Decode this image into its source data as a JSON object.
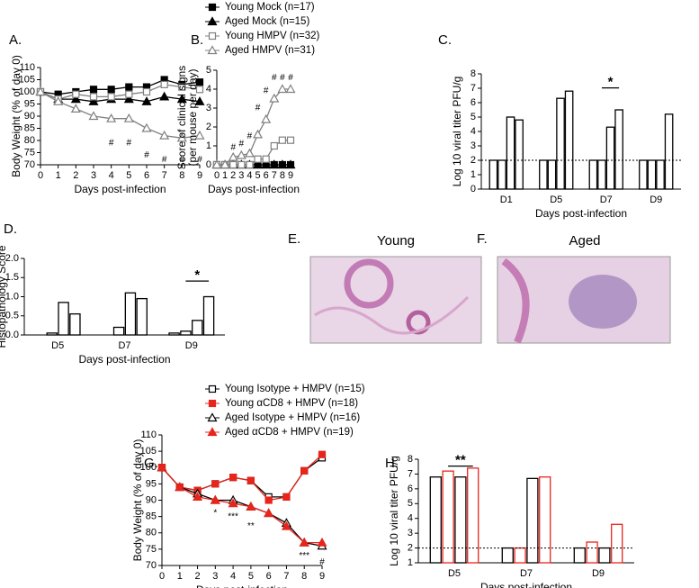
{
  "chart_data": [
    {
      "type": "line",
      "panel_label": "A.",
      "ylabel": [
        "Body Weight (% of day 0)"
      ],
      "xlabel": "Days post-infection",
      "x": [
        0,
        1,
        2,
        3,
        4,
        5,
        6,
        7,
        8,
        9
      ],
      "xlim": [
        0,
        9
      ],
      "xticks": [
        0,
        1,
        2,
        3,
        4,
        5,
        6,
        7,
        8,
        9
      ],
      "ylim": [
        70,
        110
      ],
      "yticks": [
        70,
        75,
        80,
        85,
        90,
        95,
        100,
        105,
        110
      ],
      "series": [
        {
          "name": "Young Mock (n=17)",
          "color": "#000000",
          "marker": "square",
          "fill": "filled",
          "values": [
            100,
            99,
            100,
            101,
            101,
            102,
            102,
            105,
            103,
            104
          ]
        },
        {
          "name": "Aged Mock (n=15)",
          "color": "#000000",
          "marker": "triangle",
          "fill": "filled",
          "values": [
            100,
            97,
            97,
            96,
            97,
            97,
            96,
            98,
            97,
            96
          ]
        },
        {
          "name": "Young HMPV (n=32)",
          "color": "#808080",
          "marker": "square",
          "fill": "open",
          "values": [
            100,
            97,
            99,
            98,
            98,
            99,
            100,
            103,
            102,
            101
          ]
        },
        {
          "name": "Aged HMPV (n=31)",
          "color": "#808080",
          "marker": "triangle",
          "fill": "open",
          "values": [
            100,
            96,
            93,
            90,
            89,
            89,
            85,
            82,
            81,
            82
          ]
        }
      ],
      "annotations": [
        {
          "text": "#",
          "x": 4,
          "y": 79
        },
        {
          "text": "#",
          "x": 5,
          "y": 79
        },
        {
          "text": "#",
          "x": 6,
          "y": 74
        },
        {
          "text": "#",
          "x": 7,
          "y": 72
        },
        {
          "text": "#",
          "x": 8,
          "y": 72
        },
        {
          "text": "#",
          "x": 9,
          "y": 72
        }
      ]
    },
    {
      "type": "line",
      "panel_label": "B.",
      "ylabel": [
        "Score of clinical signs",
        "(per mouse per day)"
      ],
      "xlabel": "Days post-infection",
      "x": [
        0,
        1,
        2,
        3,
        4,
        5,
        6,
        7,
        8,
        9
      ],
      "xlim": [
        0,
        9
      ],
      "xticks": [
        0,
        1,
        2,
        3,
        4,
        5,
        6,
        7,
        8,
        9
      ],
      "ylim": [
        0,
        5
      ],
      "yticks": [
        0,
        1,
        2,
        3,
        4,
        5
      ],
      "series": [
        {
          "color": "#000000",
          "marker": "square",
          "fill": "filled",
          "values": [
            0,
            0,
            0,
            0,
            0,
            0,
            0,
            0,
            0,
            0
          ]
        },
        {
          "color": "#000000",
          "marker": "triangle",
          "fill": "filled",
          "values": [
            0,
            0,
            0,
            0,
            0,
            0,
            0,
            0,
            0,
            0
          ]
        },
        {
          "color": "#808080",
          "marker": "square",
          "fill": "open",
          "values": [
            0,
            0,
            0,
            0,
            0,
            0.3,
            0.3,
            1.0,
            1.3,
            1.3
          ]
        },
        {
          "color": "#808080",
          "marker": "triangle",
          "fill": "open",
          "values": [
            0,
            0,
            0.4,
            0.5,
            0.6,
            1.6,
            2.4,
            3.5,
            4.0,
            4.0
          ]
        }
      ],
      "annotations": [
        {
          "text": "#",
          "x": 2,
          "y": 0.9
        },
        {
          "text": "#",
          "x": 3,
          "y": 1.1
        },
        {
          "text": "#",
          "x": 4,
          "y": 1.5
        },
        {
          "text": "#",
          "x": 5,
          "y": 3.0
        },
        {
          "text": "#",
          "x": 6,
          "y": 3.9
        },
        {
          "text": "#",
          "x": 7,
          "y": 4.6
        },
        {
          "text": "#",
          "x": 8,
          "y": 4.6
        },
        {
          "text": "#",
          "x": 9,
          "y": 4.6
        }
      ]
    },
    {
      "type": "bar",
      "panel_label": "C.",
      "ylabel": [
        "Log 10 viral titer PFU/g"
      ],
      "xlabel": "Days post-infection",
      "categories": [
        "D1",
        "D5",
        "D7",
        "D9"
      ],
      "ylim": [
        0,
        8
      ],
      "yticks": [
        0,
        1,
        2,
        3,
        4,
        5,
        6,
        7,
        8
      ],
      "reference_line": 2,
      "series": [
        {
          "color": "#000000",
          "values": [
            2,
            2,
            2,
            2
          ]
        },
        {
          "color": "#000000",
          "values": [
            2,
            2,
            2,
            2
          ]
        },
        {
          "color": "#000000",
          "values": [
            5.0,
            6.3,
            4.3,
            2
          ]
        },
        {
          "color": "#000000",
          "values": [
            4.8,
            6.8,
            5.5,
            5.2
          ]
        }
      ],
      "annotations": [
        {
          "text": "*",
          "category": "D7",
          "y": 7.4
        }
      ]
    },
    {
      "type": "bar",
      "panel_label": "D.",
      "ylabel": [
        "Histopathology Score"
      ],
      "xlabel": "Days post-infection",
      "categories": [
        "D5",
        "D7",
        "D9"
      ],
      "ylim": [
        0,
        2
      ],
      "yticks": [
        {
          "value": 0,
          "label": "0.0"
        },
        {
          "value": 0.5,
          "label": "0.5"
        },
        {
          "value": 1,
          "label": "1.0"
        },
        {
          "value": 1.5,
          "label": "1.5"
        },
        {
          "value": 2,
          "label": "2.0"
        }
      ],
      "series": [
        {
          "color": "#000000",
          "values": [
            0,
            0,
            0.05
          ]
        },
        {
          "color": "#000000",
          "values": [
            0.05,
            0.2,
            0.1
          ]
        },
        {
          "color": "#000000",
          "values": [
            0.85,
            1.1,
            0.38
          ]
        },
        {
          "color": "#000000",
          "values": [
            0.55,
            0.95,
            1.0
          ]
        }
      ],
      "annotations": [
        {
          "text": "*",
          "category": "D9",
          "y": 1.55
        }
      ]
    },
    {
      "type": "line",
      "panel_label": "G.",
      "ylabel": [
        "Body Weight (% of day 0)"
      ],
      "xlabel": "Days post-infection",
      "x": [
        0,
        1,
        2,
        3,
        4,
        5,
        6,
        7,
        8,
        9
      ],
      "xlim": [
        0,
        9
      ],
      "xticks": [
        0,
        1,
        2,
        3,
        4,
        5,
        6,
        7,
        8,
        9
      ],
      "ylim": [
        70,
        110
      ],
      "yticks": [
        70,
        75,
        80,
        85,
        90,
        95,
        100,
        105,
        110
      ],
      "series": [
        {
          "name": "Young Isotype + HMPV (n=15)",
          "color": "#000000",
          "marker": "square",
          "fill": "open",
          "values": [
            100,
            94,
            93,
            95,
            97,
            96,
            91,
            91,
            99,
            103
          ]
        },
        {
          "name": "Young αCD8 + HMPV (n=18)",
          "color": "#e8251b",
          "marker": "square",
          "fill": "filled",
          "values": [
            100,
            94,
            93,
            95,
            97,
            96,
            90,
            91,
            99,
            104
          ]
        },
        {
          "name": "Aged Isotype + HMPV (n=16)",
          "color": "#000000",
          "marker": "triangle",
          "fill": "open",
          "values": [
            100,
            94,
            92,
            90,
            90,
            88,
            86,
            83,
            77,
            76
          ]
        },
        {
          "name": "Aged αCD8 + HMPV (n=19)",
          "color": "#e8251b",
          "marker": "triangle",
          "fill": "filled",
          "values": [
            100,
            94,
            91,
            90,
            89,
            88,
            86,
            82,
            77,
            77
          ]
        }
      ],
      "annotations": [
        {
          "text": "*",
          "x": 3,
          "y": 86
        },
        {
          "text": "***",
          "x": 4,
          "y": 85
        },
        {
          "text": "**",
          "x": 5,
          "y": 82
        },
        {
          "text": "***",
          "x": 8,
          "y": 73
        },
        {
          "text": "#",
          "x": 9,
          "y": 71
        }
      ]
    },
    {
      "type": "bar",
      "panel_label": "H.",
      "ylabel": [
        "Log 10 viral titer PFU/g"
      ],
      "xlabel": "Days post-infection",
      "categories": [
        "D5",
        "D7",
        "D9"
      ],
      "ylim": [
        1,
        8
      ],
      "yticks": [
        1,
        2,
        3,
        4,
        5,
        6,
        7,
        8
      ],
      "reference_line": 2,
      "series": [
        {
          "color": "#000000",
          "values": [
            6.8,
            2.0,
            2.0
          ]
        },
        {
          "color": "#e8251b",
          "values": [
            7.2,
            2.0,
            2.4
          ]
        },
        {
          "color": "#000000",
          "values": [
            6.8,
            6.7,
            2.0
          ]
        },
        {
          "color": "#e8251b",
          "values": [
            7.4,
            6.8,
            3.6
          ]
        }
      ],
      "annotations": [
        {
          "text": "**",
          "category": "D5",
          "y": 7.9
        }
      ]
    }
  ],
  "images": [
    {
      "panel_label": "E.",
      "title": "Young"
    },
    {
      "panel_label": "F.",
      "title": "Aged"
    }
  ]
}
